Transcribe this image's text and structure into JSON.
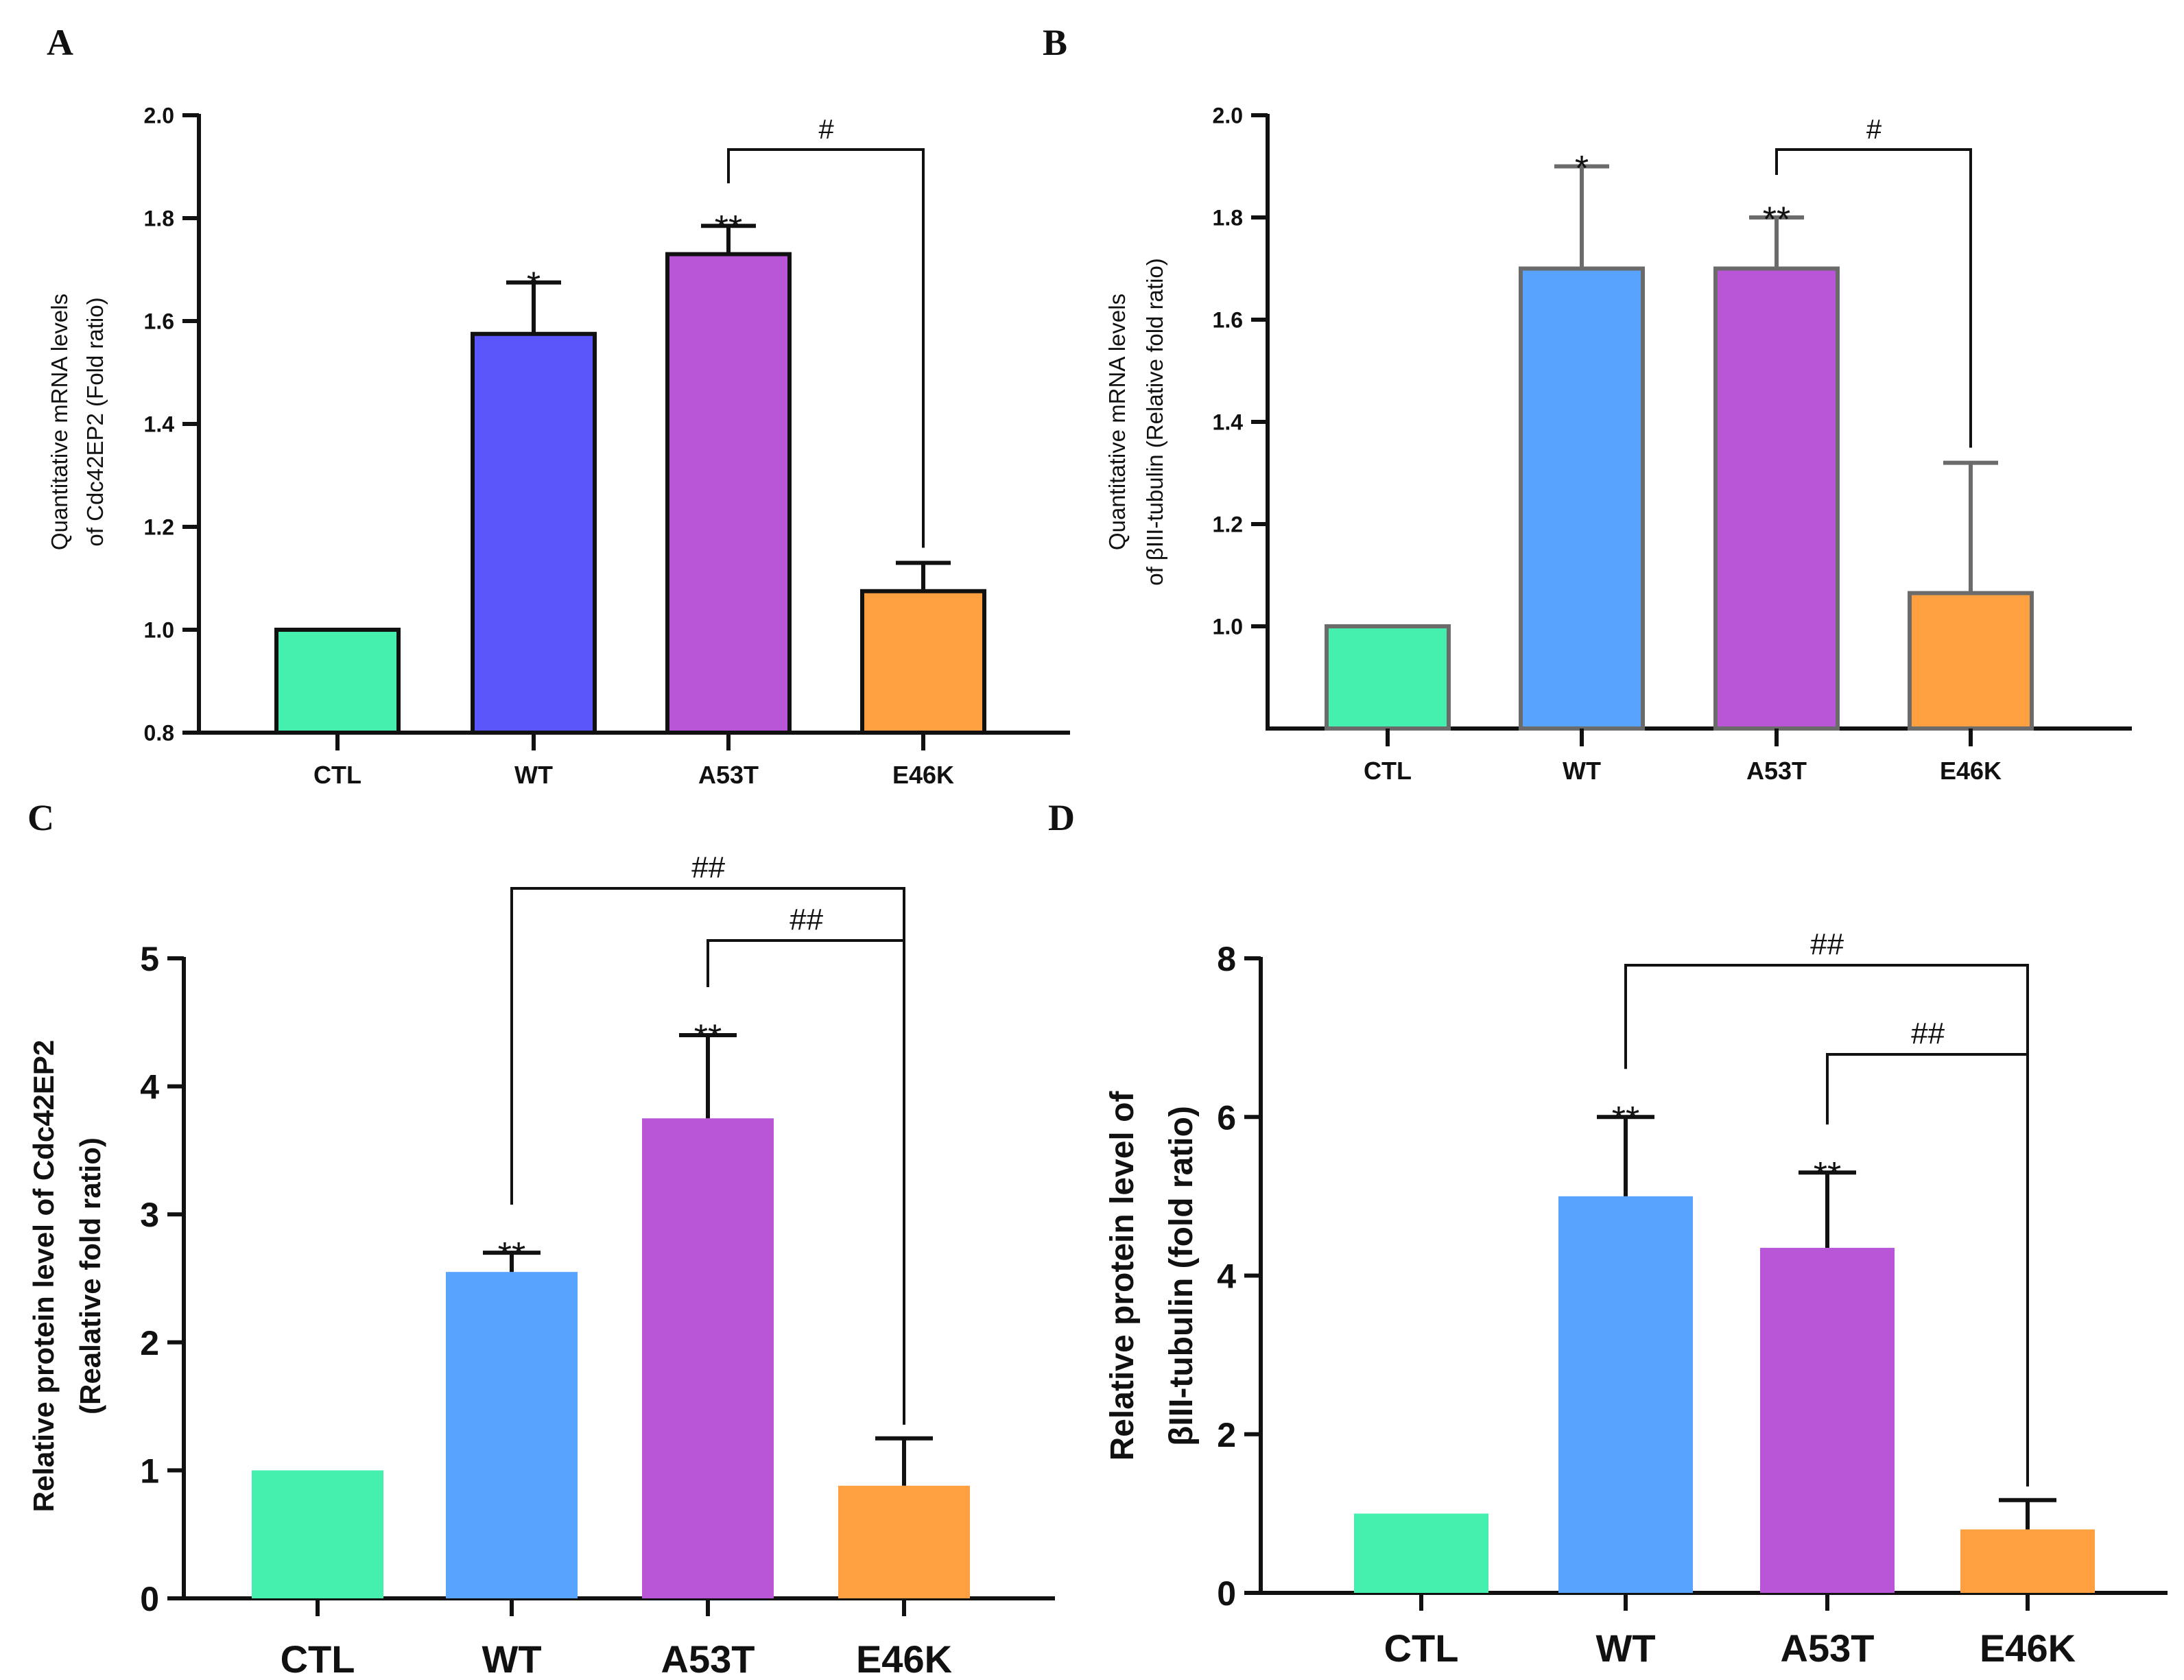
{
  "chart_data": [
    {
      "panel": "A",
      "type": "bar",
      "categories": [
        "CTL",
        "WT",
        "A53T",
        "E46K"
      ],
      "values": [
        1.0,
        1.575,
        1.73,
        1.075
      ],
      "errors": [
        0,
        0.1,
        0.055,
        0.055
      ],
      "colors": [
        "#45f0ae",
        "#5a56fa",
        "#b956d8",
        "#fea040"
      ],
      "bar_outline": "#111111",
      "ylabel": [
        "Quantitative mRNA levels",
        "of Cdc42EP2 (Fold ratio)"
      ],
      "ylim": [
        0.8,
        2.0
      ],
      "yticks": [
        "0.8",
        "1.0",
        "1.2",
        "1.4",
        "1.6",
        "1.8",
        "2.0"
      ],
      "significance": [
        {
          "category": "WT",
          "mark": "*"
        },
        {
          "category": "A53T",
          "mark": "**"
        }
      ],
      "brackets": [
        {
          "from": "A53T",
          "to": "E46K",
          "mark": "#"
        }
      ]
    },
    {
      "panel": "B",
      "type": "bar",
      "categories": [
        "CTL",
        "WT",
        "A53T",
        "E46K"
      ],
      "values": [
        1.0,
        1.7,
        1.7,
        1.065
      ],
      "errors": [
        0,
        0.2,
        0.1,
        0.255
      ],
      "colors": [
        "#45f0ae",
        "#57a3fd",
        "#b956d8",
        "#fea040"
      ],
      "bar_outline": "#6b6b6b",
      "ylabel": [
        "Quantitative mRNA levels",
        "of βIII-tubulin (Relative fold ratio)"
      ],
      "ylim": [
        0.8,
        2.0
      ],
      "yticks": [
        "1.0",
        "1.2",
        "1.4",
        "1.6",
        "1.8",
        "2.0"
      ],
      "significance": [
        {
          "category": "WT",
          "mark": "*"
        },
        {
          "category": "A53T",
          "mark": "**"
        }
      ],
      "brackets": [
        {
          "from": "A53T",
          "to": "E46K",
          "mark": "#"
        }
      ]
    },
    {
      "panel": "C",
      "type": "bar",
      "categories": [
        "CTL",
        "WT",
        "A53T",
        "E46K"
      ],
      "values": [
        1.0,
        2.55,
        3.75,
        0.88
      ],
      "errors": [
        0,
        0.15,
        0.65,
        0.37
      ],
      "colors": [
        "#45f0ae",
        "#57a3fd",
        "#b956d8",
        "#fea040"
      ],
      "bar_outline": "none",
      "ylabel": [
        "Relative protein level of Cdc42EP2",
        "(Realative fold ratio)"
      ],
      "ylim": [
        0,
        5
      ],
      "yticks": [
        "0",
        "1",
        "2",
        "3",
        "4",
        "5"
      ],
      "significance": [
        {
          "category": "WT",
          "mark": "**"
        },
        {
          "category": "A53T",
          "mark": "**"
        }
      ],
      "brackets": [
        {
          "from": "WT",
          "to": "E46K",
          "mark": "##"
        },
        {
          "from": "A53T",
          "to": "E46K",
          "mark": "##"
        }
      ]
    },
    {
      "panel": "D",
      "type": "bar",
      "categories": [
        "CTL",
        "WT",
        "A53T",
        "E46K"
      ],
      "values": [
        1.0,
        5.0,
        4.35,
        0.8
      ],
      "errors": [
        0,
        1.0,
        0.95,
        0.37
      ],
      "colors": [
        "#45f0ae",
        "#57a3fd",
        "#b956d8",
        "#fea040"
      ],
      "bar_outline": "none",
      "ylabel": [
        "Relative protein level of",
        "βIII-tubulin (fold ratio)"
      ],
      "ylim": [
        0,
        8
      ],
      "yticks": [
        "0",
        "2",
        "4",
        "6",
        "8"
      ],
      "significance": [
        {
          "category": "WT",
          "mark": "**"
        },
        {
          "category": "A53T",
          "mark": "**"
        }
      ],
      "brackets": [
        {
          "from": "WT",
          "to": "E46K",
          "mark": "##"
        },
        {
          "from": "A53T",
          "to": "E46K",
          "mark": "##"
        }
      ]
    }
  ]
}
